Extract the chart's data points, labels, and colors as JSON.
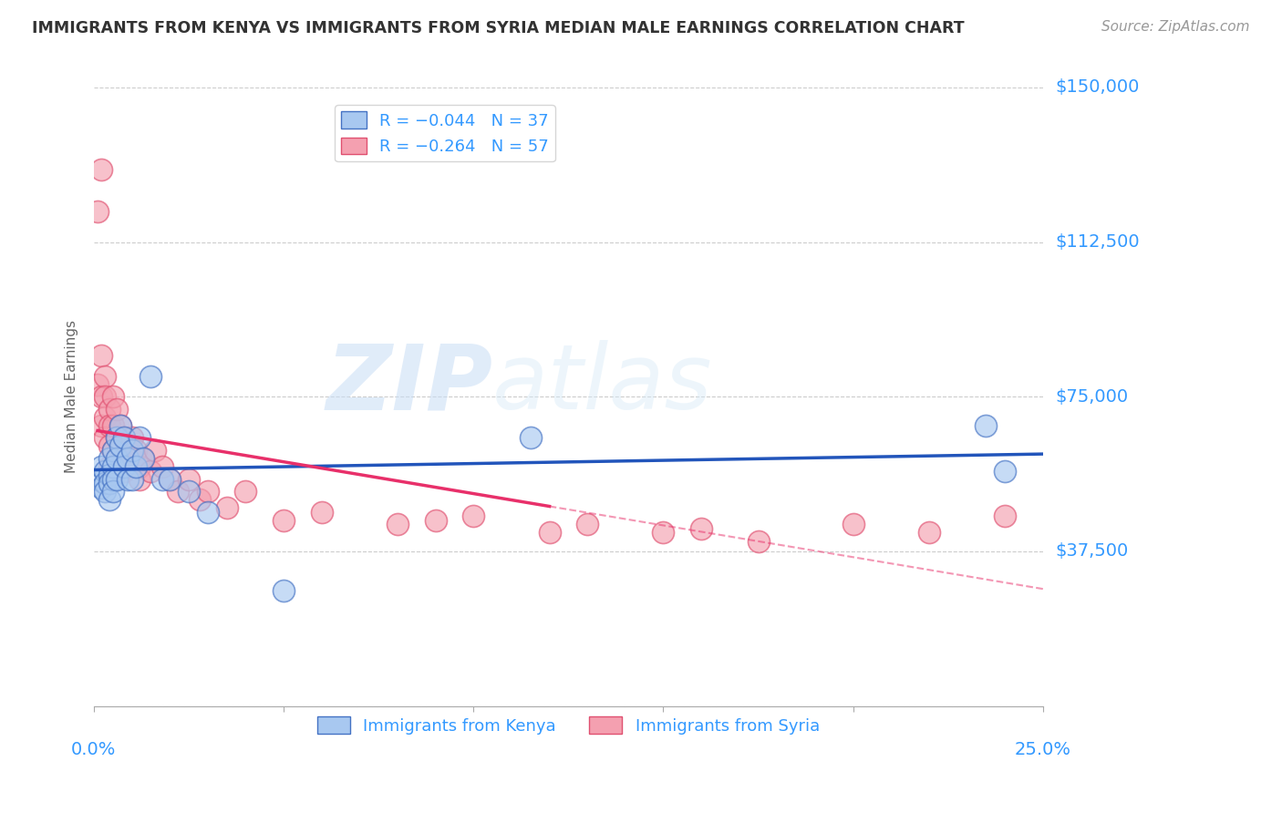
{
  "title": "IMMIGRANTS FROM KENYA VS IMMIGRANTS FROM SYRIA MEDIAN MALE EARNINGS CORRELATION CHART",
  "source": "Source: ZipAtlas.com",
  "ylabel": "Median Male Earnings",
  "yticks": [
    0,
    37500,
    75000,
    112500,
    150000
  ],
  "ytick_labels": [
    "",
    "$37,500",
    "$75,000",
    "$112,500",
    "$150,000"
  ],
  "xlim": [
    0.0,
    0.25
  ],
  "ylim": [
    0,
    150000
  ],
  "watermark_zip": "ZIP",
  "watermark_atlas": "atlas",
  "kenya_color": "#A8C8F0",
  "kenya_edge_color": "#4472C4",
  "syria_color": "#F4A0B0",
  "syria_edge_color": "#E05070",
  "kenya_line_color": "#2255BB",
  "syria_line_color": "#E8306A",
  "axis_label_color": "#3399FF",
  "grid_color": "#CCCCCC",
  "background_color": "#FFFFFF",
  "title_color": "#333333",
  "kenya_x": [
    0.001,
    0.002,
    0.002,
    0.003,
    0.003,
    0.003,
    0.004,
    0.004,
    0.004,
    0.004,
    0.005,
    0.005,
    0.005,
    0.005,
    0.006,
    0.006,
    0.006,
    0.007,
    0.007,
    0.008,
    0.008,
    0.009,
    0.009,
    0.01,
    0.01,
    0.011,
    0.012,
    0.013,
    0.015,
    0.018,
    0.02,
    0.025,
    0.03,
    0.05,
    0.115,
    0.235,
    0.24
  ],
  "kenya_y": [
    55000,
    58000,
    53000,
    57000,
    54000,
    52000,
    60000,
    56000,
    54000,
    50000,
    62000,
    58000,
    55000,
    52000,
    65000,
    60000,
    55000,
    68000,
    63000,
    65000,
    58000,
    60000,
    55000,
    62000,
    55000,
    58000,
    65000,
    60000,
    80000,
    55000,
    55000,
    52000,
    47000,
    28000,
    65000,
    68000,
    57000
  ],
  "syria_x": [
    0.001,
    0.001,
    0.002,
    0.002,
    0.002,
    0.003,
    0.003,
    0.003,
    0.003,
    0.004,
    0.004,
    0.004,
    0.004,
    0.005,
    0.005,
    0.005,
    0.006,
    0.006,
    0.006,
    0.007,
    0.007,
    0.007,
    0.008,
    0.008,
    0.008,
    0.009,
    0.009,
    0.01,
    0.01,
    0.011,
    0.012,
    0.012,
    0.013,
    0.015,
    0.016,
    0.018,
    0.02,
    0.022,
    0.025,
    0.028,
    0.03,
    0.035,
    0.04,
    0.05,
    0.06,
    0.08,
    0.09,
    0.1,
    0.12,
    0.13,
    0.15,
    0.16,
    0.175,
    0.2,
    0.22,
    0.24,
    0.002
  ],
  "syria_y": [
    120000,
    78000,
    85000,
    75000,
    68000,
    80000,
    75000,
    70000,
    65000,
    72000,
    68000,
    63000,
    58000,
    75000,
    68000,
    62000,
    72000,
    65000,
    60000,
    68000,
    62000,
    58000,
    65000,
    60000,
    57000,
    62000,
    58000,
    65000,
    60000,
    62000,
    58000,
    55000,
    60000,
    57000,
    62000,
    58000,
    55000,
    52000,
    55000,
    50000,
    52000,
    48000,
    52000,
    45000,
    47000,
    44000,
    45000,
    46000,
    42000,
    44000,
    42000,
    43000,
    40000,
    44000,
    42000,
    46000,
    130000
  ]
}
